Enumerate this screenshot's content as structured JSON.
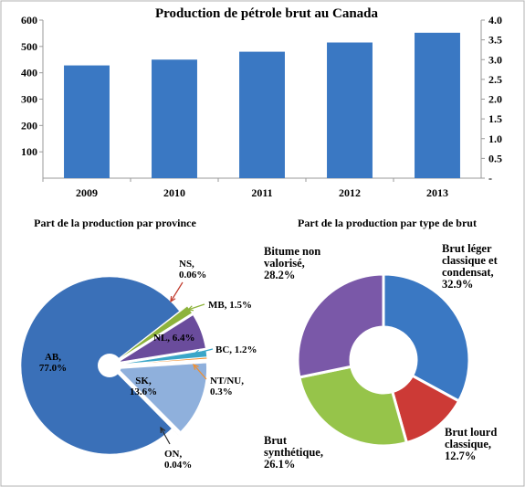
{
  "chart_data": [
    {
      "type": "bar",
      "title": "Production de pétrole brut au Canada",
      "categories": [
        "2009",
        "2010",
        "2011",
        "2012",
        "2013"
      ],
      "values": [
        428,
        450,
        480,
        515,
        552
      ],
      "ylim": [
        0,
        600
      ],
      "y_ticks": [
        "100",
        "200",
        "300",
        "400",
        "500",
        "600"
      ],
      "ylim_right": [
        0,
        4.0
      ],
      "y2_ticks": [
        "-",
        "0.5",
        "1.0",
        "1.5",
        "2.0",
        "2.5",
        "3.0",
        "3.5",
        "4.0"
      ],
      "color": "#3a78c3",
      "grid": false
    },
    {
      "type": "pie",
      "title": "Part de la production  par province",
      "slices": [
        {
          "label": "AB,\n77.0%",
          "value": 77.0,
          "color": "#3a70b8"
        },
        {
          "label": "NS,\n0.06%",
          "value": 0.06,
          "color": "#c0392b"
        },
        {
          "label": "MB, 1.5%",
          "value": 1.5,
          "color": "#8db33c"
        },
        {
          "label": "NL, 6.4%",
          "value": 6.4,
          "color": "#6a4c9c"
        },
        {
          "label": "BC, 1.2%",
          "value": 1.2,
          "color": "#3aa6c8"
        },
        {
          "label": "NT/NU,\n0.3%",
          "value": 0.3,
          "color": "#f28e2b"
        },
        {
          "label": "SK,\n13.6%",
          "value": 13.6,
          "color": "#8fb0dc"
        },
        {
          "label": "ON,\n0.04%",
          "value": 0.04,
          "color": "#2b2b2b"
        }
      ]
    },
    {
      "type": "pie",
      "title": "Part de la production  par type de brut",
      "slices": [
        {
          "label": "Brut léger\nclassique et\ncondensat,\n32.9%",
          "value": 32.9,
          "color": "#3a78c3"
        },
        {
          "label": "Brut lourd\nclassique,\n12.7%",
          "value": 12.7,
          "color": "#cc3a36"
        },
        {
          "label": "Brut\nsynthétique,\n26.1%",
          "value": 26.1,
          "color": "#96c44a"
        },
        {
          "label": "Bitume non\nvalorisé,\n28.2%",
          "value": 28.2,
          "color": "#7a58a8"
        }
      ]
    }
  ]
}
